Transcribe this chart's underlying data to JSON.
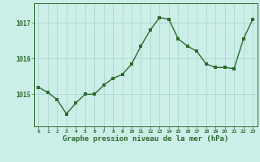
{
  "hours": [
    0,
    1,
    2,
    3,
    4,
    5,
    6,
    7,
    8,
    9,
    10,
    11,
    12,
    13,
    14,
    15,
    16,
    17,
    18,
    19,
    20,
    21,
    22,
    23
  ],
  "pressure": [
    1015.2,
    1015.05,
    1014.85,
    1014.45,
    1014.75,
    1015.0,
    1015.0,
    1015.25,
    1015.45,
    1015.55,
    1015.85,
    1016.35,
    1016.8,
    1017.15,
    1017.1,
    1016.55,
    1016.35,
    1016.2,
    1015.85,
    1015.75,
    1015.75,
    1015.72,
    1016.55,
    1017.1
  ],
  "line_color": "#2d6a2d",
  "marker_color": "#2d6a2d",
  "bg_color": "#cceee8",
  "grid_color": "#aad8d0",
  "axis_label_color": "#2d6a2d",
  "tick_color": "#2d6a2d",
  "xlabel": "Graphe pression niveau de la mer (hPa)",
  "ylim_min": 1014.1,
  "ylim_max": 1017.55,
  "yticks": [
    1015,
    1016,
    1017
  ],
  "xlabel_fontsize": 6.5,
  "marker_size": 2.5,
  "line_width": 1.0,
  "fig_width": 3.2,
  "fig_height": 2.0,
  "dpi": 100
}
